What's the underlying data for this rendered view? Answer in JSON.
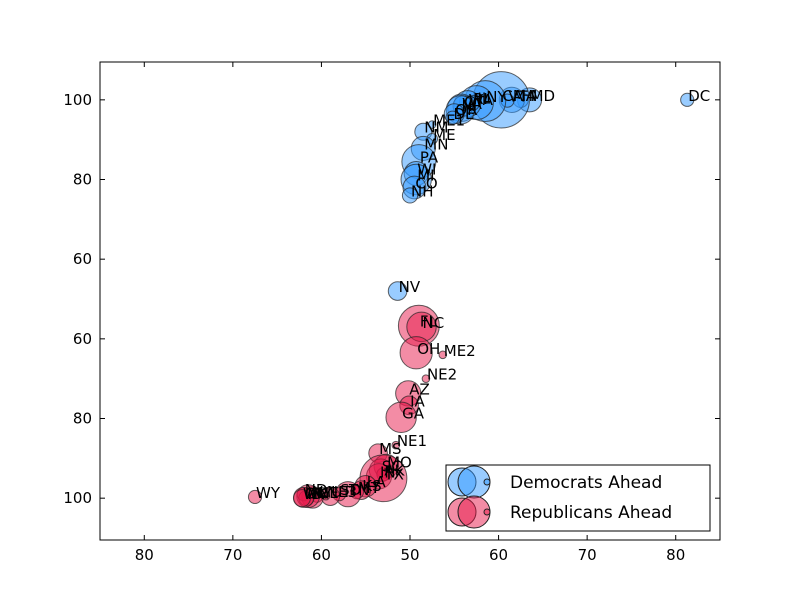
{
  "chart_data": {
    "type": "scatter",
    "xlim": [
      15,
      85
    ],
    "xticks": [
      {
        "value": 20,
        "label": "80"
      },
      {
        "value": 30,
        "label": "70"
      },
      {
        "value": 40,
        "label": "60"
      },
      50,
      {
        "value": 60,
        "label": "60"
      },
      {
        "value": 70,
        "label": "70"
      },
      {
        "value": 80,
        "label": "80"
      }
    ],
    "ylim": [
      -10.5,
      109.5
    ],
    "yticks": [
      {
        "value": 0,
        "label": "100"
      },
      {
        "value": 20,
        "label": "80"
      },
      {
        "value": 40,
        "label": "60"
      },
      60,
      {
        "value": 80,
        "label": "80"
      },
      100
    ],
    "legend": "lower right",
    "series": [
      {
        "name": "Democrats Ahead",
        "color": "#3399ff",
        "labels": [
          "DC",
          "MD",
          "HI",
          "MA",
          "CA",
          "VT",
          "NY",
          "IL",
          "WA",
          "RI",
          "VA",
          "CT",
          "NJ",
          "OR",
          "DE",
          "ME1",
          "NM",
          "ME",
          "MN",
          "PA",
          "WI",
          "MI",
          "CO",
          "NH",
          "NV"
        ],
        "x": [
          81.3,
          63.5,
          62.5,
          61.5,
          60.3,
          61,
          58.5,
          57.5,
          56.5,
          57,
          55.8,
          56,
          55.7,
          55,
          54.8,
          52.5,
          51.5,
          52.5,
          51.5,
          51,
          50.7,
          50.7,
          50.5,
          50,
          48.6
        ],
        "values": [
          100,
          100,
          100,
          100,
          100,
          99.8,
          99.7,
          99.3,
          99,
          99.2,
          98,
          98.5,
          97.5,
          96.5,
          95.5,
          93.8,
          92,
          90.2,
          87.8,
          84.5,
          81.5,
          80,
          78,
          76,
          52
        ],
        "sizes": [
          3,
          10,
          4,
          11,
          55,
          3,
          29,
          20,
          12,
          4,
          13,
          7,
          14,
          7,
          3,
          1,
          5,
          2,
          10,
          20,
          10,
          16,
          9,
          4,
          6
        ]
      },
      {
        "name": "Republicans Ahead",
        "color": "#e8194b",
        "labels": [
          "FL",
          "NC",
          "OH",
          "ME2",
          "NE2",
          "AZ",
          "IA",
          "GA",
          "NE1",
          "MS",
          "MO",
          "SC",
          "AK",
          "IN",
          "TX",
          "LA",
          "KS",
          "MT",
          "TN",
          "SD",
          "UT",
          "NE",
          "KY",
          "AL",
          "ND",
          "ID",
          "OK",
          "WV",
          "NE3",
          "WY"
        ],
        "x": [
          51,
          51.3,
          50.7,
          53.7,
          51.8,
          49.8,
          49.9,
          49,
          48.4,
          46.4,
          47.3,
          46.7,
          47,
          46.5,
          47,
          45,
          44.5,
          44,
          43,
          42,
          41,
          39.5,
          39,
          38.5,
          38,
          38.3,
          38,
          37.8,
          40.5,
          32.5
        ],
        "values": [
          43.3,
          43,
          36.5,
          36,
          30,
          26.3,
          23.3,
          20.3,
          13.3,
          11.3,
          8,
          7,
          6,
          5.5,
          5,
          3,
          2,
          1.5,
          1,
          1,
          0.5,
          0.3,
          0.2,
          0.5,
          1,
          0,
          0.2,
          0,
          0.5,
          0.3
        ],
        "sizes": [
          29,
          15,
          18,
          1,
          1,
          11,
          6,
          16,
          1,
          6,
          10,
          9,
          3,
          11,
          38,
          8,
          6,
          3,
          11,
          3,
          6,
          2,
          8,
          9,
          3,
          4,
          7,
          5,
          1,
          3
        ]
      }
    ]
  }
}
